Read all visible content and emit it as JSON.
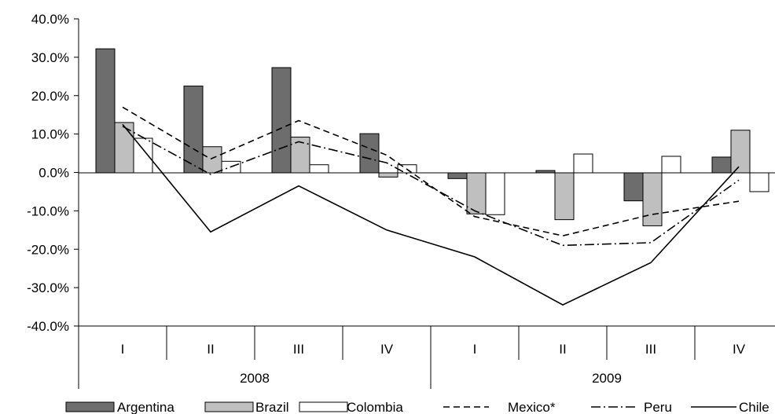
{
  "chart_data": {
    "type": "bar",
    "title": "",
    "xlabel": "",
    "ylabel": "",
    "ylim": [
      -40,
      40
    ],
    "y_ticks": [
      "40.0%",
      "30.0%",
      "20.0%",
      "10.0%",
      "0.0%",
      "-10.0%",
      "-20.0%",
      "-30.0%",
      "-40.0%"
    ],
    "y_tick_values": [
      40,
      30,
      20,
      10,
      0,
      -10,
      -20,
      -30,
      -40
    ],
    "categories": [
      "I",
      "II",
      "III",
      "IV",
      "I",
      "II",
      "III",
      "IV"
    ],
    "groups": [
      {
        "label": "2008",
        "span": 4
      },
      {
        "label": "2009",
        "span": 4
      }
    ],
    "grid": false,
    "legend": "bottom",
    "series": [
      {
        "name": "Argentina",
        "kind": "bar",
        "fill": "#6d6d6d",
        "values": [
          32.2,
          22.5,
          27.3,
          10.1,
          -1.6,
          0.5,
          -7.4,
          4.0
        ]
      },
      {
        "name": "Brazil",
        "kind": "bar",
        "fill": "#bfbfbf",
        "values": [
          13.0,
          6.7,
          9.2,
          -1.2,
          -10.8,
          -12.3,
          -13.9,
          11.0
        ]
      },
      {
        "name": "Colombia",
        "kind": "bar",
        "fill": "#ffffff",
        "values": [
          8.9,
          2.9,
          2.0,
          2.0,
          -11.0,
          4.8,
          4.2,
          -5.0
        ]
      },
      {
        "name": "Mexico*",
        "kind": "line",
        "dash": "8,5",
        "values": [
          17.0,
          3.5,
          13.5,
          4.5,
          -11.5,
          -16.5,
          -11.0,
          -7.5
        ]
      },
      {
        "name": "Peru",
        "kind": "line",
        "dash": "12,4,2,4",
        "values": [
          12.0,
          -0.5,
          8.0,
          2.5,
          -10.0,
          -19.0,
          -18.3,
          -2.0
        ]
      },
      {
        "name": "Chile",
        "kind": "line",
        "dash": "",
        "values": [
          12.5,
          -15.5,
          -3.5,
          -15.0,
          -22.0,
          -34.5,
          -23.5,
          1.5
        ]
      }
    ]
  }
}
